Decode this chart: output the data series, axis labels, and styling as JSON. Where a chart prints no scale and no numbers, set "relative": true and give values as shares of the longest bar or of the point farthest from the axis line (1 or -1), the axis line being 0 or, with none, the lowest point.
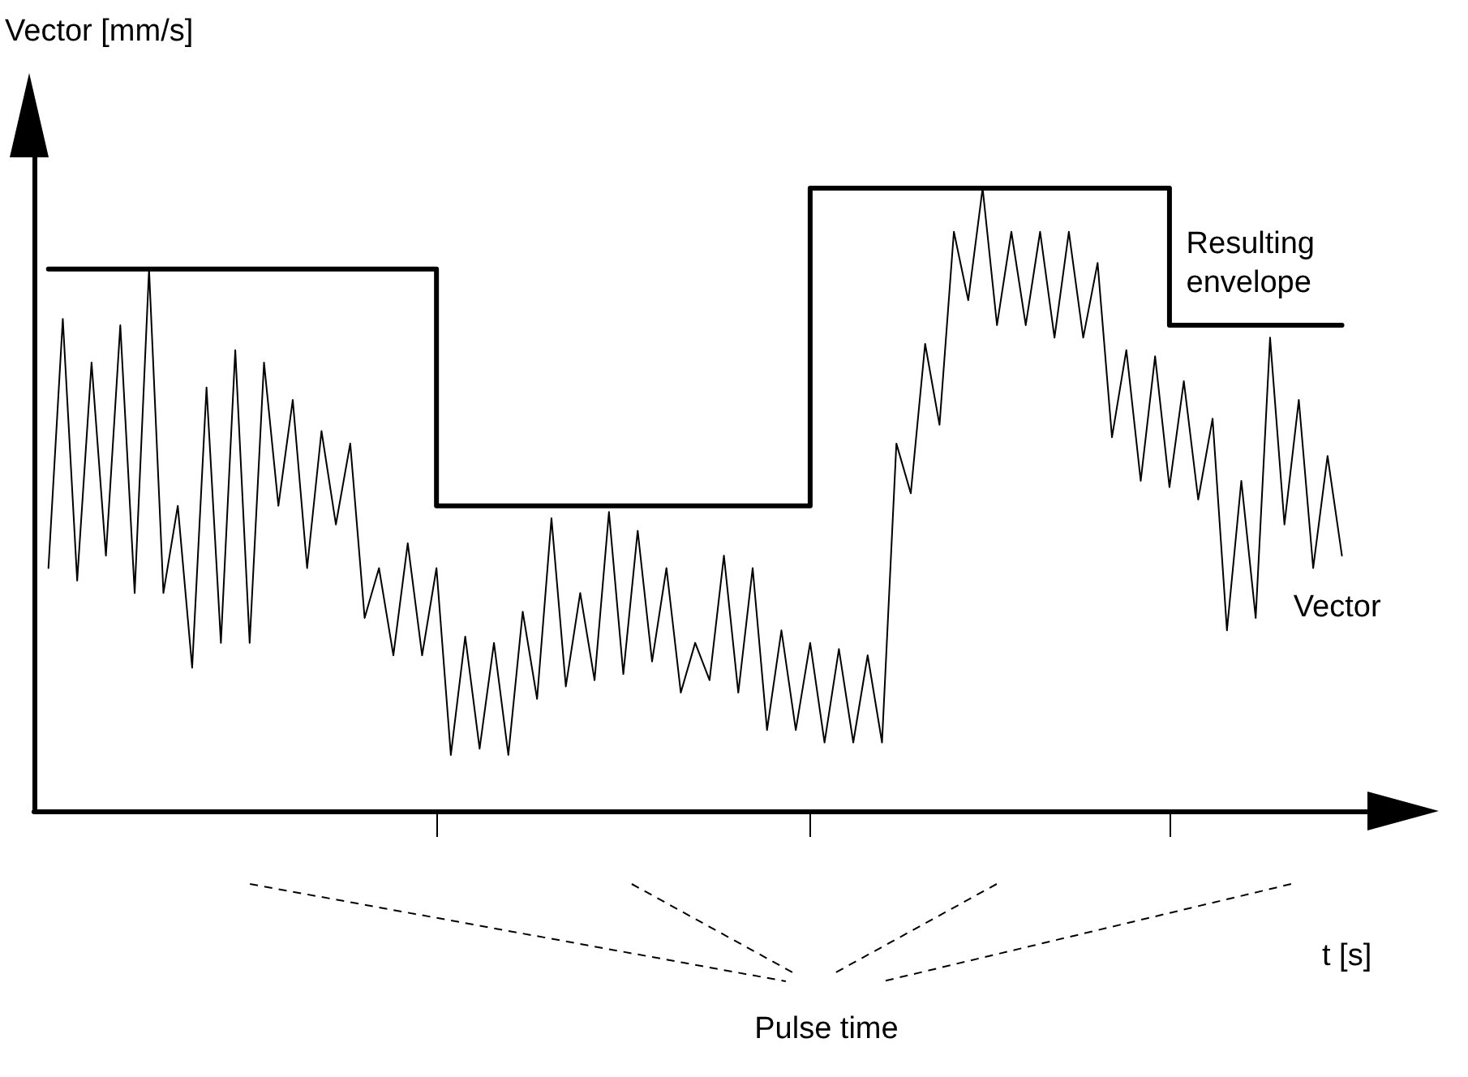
{
  "chart_data": {
    "type": "line",
    "relative": true,
    "xlabel": "t [s]",
    "ylabel": "Vector [mm/s]",
    "annotations": [
      "Pulse time"
    ],
    "categories": [
      null,
      null,
      null,
      null,
      null,
      null,
      null,
      null,
      null,
      null,
      null,
      null,
      null,
      null,
      null,
      null,
      null,
      null,
      null,
      null,
      null,
      null,
      null,
      null,
      null,
      null,
      null,
      null,
      null,
      null,
      null,
      null,
      null,
      null,
      null,
      null,
      null,
      null,
      null,
      null,
      null,
      null,
      null,
      null,
      null,
      null,
      null,
      null,
      null,
      null,
      null,
      null,
      null,
      null,
      null,
      null,
      null,
      null,
      null,
      null,
      null,
      null,
      null,
      null,
      null,
      null,
      null,
      null,
      null,
      null,
      null,
      null,
      null,
      null,
      null,
      null,
      null,
      null,
      null,
      null,
      null,
      null,
      null,
      null,
      null,
      null,
      null,
      null,
      null,
      null,
      null
    ],
    "series": [
      {
        "name": "Resulting envelope",
        "type": "step",
        "color": "#000000",
        "values": [
          0.87,
          0.87,
          0.87,
          0.87,
          0.87,
          0.87,
          0.87,
          0.87,
          0.87,
          0.87,
          0.87,
          0.87,
          0.87,
          0.87,
          0.87,
          0.87,
          0.87,
          0.87,
          0.87,
          0.87,
          0.87,
          0.87,
          0.87,
          0.87,
          0.87,
          0.87,
          0.87,
          0.49,
          0.49,
          0.49,
          0.49,
          0.49,
          0.49,
          0.49,
          0.49,
          0.49,
          0.49,
          0.49,
          0.49,
          0.49,
          0.49,
          0.49,
          0.49,
          0.49,
          0.49,
          0.49,
          0.49,
          0.49,
          0.49,
          0.49,
          0.49,
          0.49,
          0.49,
          1,
          1,
          1,
          1,
          1,
          1,
          1,
          1,
          1,
          1,
          1,
          1,
          1,
          1,
          1,
          1,
          1,
          1,
          1,
          1,
          1,
          1,
          1,
          1,
          1,
          0.78,
          0.78,
          0.78,
          0.78,
          0.78,
          0.78,
          0.78,
          0.78,
          0.78,
          0.78,
          0.78,
          0.78,
          0.78
        ]
      },
      {
        "name": "Vector",
        "color": "#000000",
        "values": [
          0.39,
          0.79,
          0.37,
          0.72,
          0.41,
          0.78,
          0.35,
          0.87,
          0.35,
          0.49,
          0.23,
          0.68,
          0.27,
          0.74,
          0.27,
          0.72,
          0.49,
          0.66,
          0.39,
          0.61,
          0.46,
          0.59,
          0.31,
          0.39,
          0.25,
          0.43,
          0.25,
          0.39,
          0.09,
          0.28,
          0.1,
          0.27,
          0.09,
          0.32,
          0.18,
          0.47,
          0.2,
          0.35,
          0.21,
          0.48,
          0.22,
          0.45,
          0.24,
          0.39,
          0.19,
          0.27,
          0.21,
          0.41,
          0.19,
          0.39,
          0.13,
          0.29,
          0.13,
          0.27,
          0.11,
          0.26,
          0.11,
          0.25,
          0.11,
          0.59,
          0.51,
          0.75,
          0.62,
          0.93,
          0.82,
          1,
          0.78,
          0.93,
          0.78,
          0.93,
          0.76,
          0.93,
          0.76,
          0.88,
          0.6,
          0.74,
          0.53,
          0.73,
          0.52,
          0.69,
          0.5,
          0.63,
          0.29,
          0.53,
          0.31,
          0.76,
          0.46,
          0.66,
          0.39,
          0.57,
          0.41
        ]
      }
    ],
    "legend": false,
    "grid": false,
    "marker": "none",
    "line_style": "solid"
  }
}
